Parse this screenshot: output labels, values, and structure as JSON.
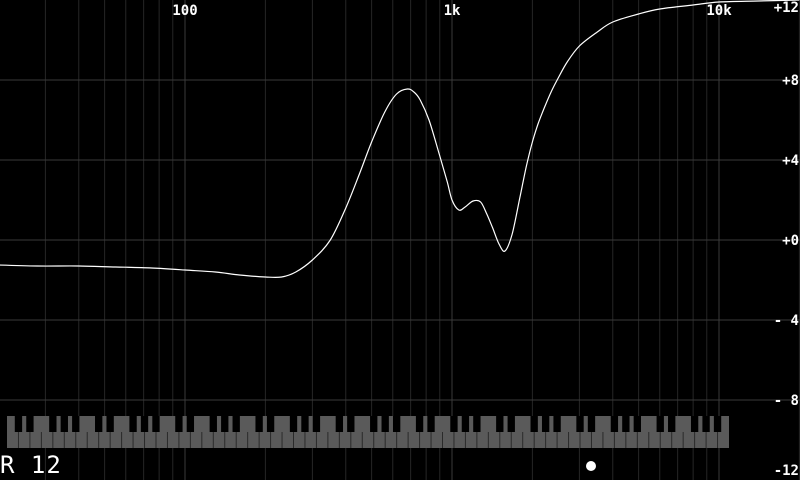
{
  "chart_data": {
    "type": "line",
    "title": "",
    "xlabel": "",
    "ylabel": "",
    "x_scale": "log",
    "xlim": [
      20,
      20000
    ],
    "ylim": [
      -12,
      12
    ],
    "grid": true,
    "x_tick_labels": [
      {
        "value": 100,
        "label": "100"
      },
      {
        "value": 1000,
        "label": "1k"
      },
      {
        "value": 10000,
        "label": "10k"
      }
    ],
    "y_tick_labels": [
      {
        "value": 12,
        "label": "+12"
      },
      {
        "value": 8,
        "label": "+8"
      },
      {
        "value": 4,
        "label": "+4"
      },
      {
        "value": 0,
        "label": "+0"
      },
      {
        "value": -4,
        "label": "- 4"
      },
      {
        "value": -8,
        "label": "- 8"
      },
      {
        "value": -12,
        "label": "-12"
      }
    ],
    "series": [
      {
        "x": [
          20,
          28,
          40,
          55,
          75,
          100,
          130,
          160,
          200,
          230,
          260,
          300,
          350,
          400,
          450,
          500,
          560,
          620,
          680,
          720,
          760,
          820,
          900,
          960,
          1000,
          1060,
          1120,
          1200,
          1280,
          1350,
          1420,
          1500,
          1580,
          1680,
          1800,
          1900,
          2000,
          2100,
          2200,
          2350,
          2500,
          2700,
          3000,
          3500,
          4000,
          5000,
          6000,
          8000,
          10000,
          14000,
          20000
        ],
        "y": [
          -1.25,
          -1.3,
          -1.3,
          -1.35,
          -1.4,
          -1.5,
          -1.6,
          -1.75,
          -1.85,
          -1.85,
          -1.6,
          -1.0,
          0.0,
          1.6,
          3.3,
          4.9,
          6.4,
          7.3,
          7.55,
          7.4,
          7.0,
          6.0,
          4.2,
          2.9,
          2.0,
          1.5,
          1.65,
          1.95,
          1.9,
          1.3,
          0.6,
          -0.2,
          -0.55,
          0.3,
          2.2,
          3.7,
          4.9,
          5.8,
          6.5,
          7.4,
          8.1,
          8.9,
          9.7,
          10.4,
          10.9,
          11.3,
          11.55,
          11.75,
          11.9,
          11.95,
          12.0
        ]
      }
    ]
  },
  "status": {
    "channel_text": "R 12"
  },
  "keyboard": {
    "octave_pattern": [
      "white",
      "black",
      "white",
      "black",
      "white",
      "white",
      "black",
      "white",
      "black",
      "white",
      "black",
      "white"
    ]
  }
}
